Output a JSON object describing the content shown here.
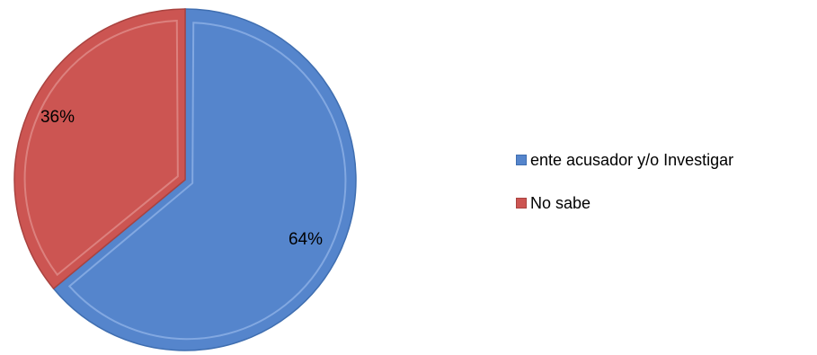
{
  "chart_data": {
    "type": "pie",
    "categories": [
      "ente acusador y/o Investigar",
      "No sabe"
    ],
    "values": [
      64,
      36
    ],
    "data_labels": [
      "64%",
      "36%"
    ],
    "colors": [
      "#5585CC",
      "#CC5552"
    ],
    "legend_position": "right",
    "start_angle": "12 o'clock, clockwise"
  }
}
